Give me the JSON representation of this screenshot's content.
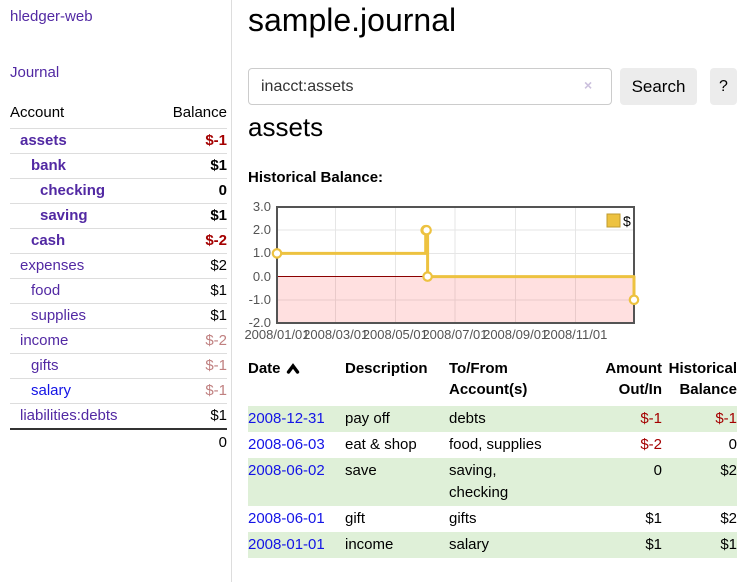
{
  "app": {
    "brand": "hledger-web",
    "nav_journal": "Journal"
  },
  "sidebar": {
    "header": {
      "account": "Account",
      "balance": "Balance"
    },
    "accounts": [
      {
        "name": "assets",
        "indent": 0,
        "bold": true,
        "link_style": "purple",
        "balance": "$-1",
        "balance_style": "strong-negative"
      },
      {
        "name": "bank",
        "indent": 1,
        "bold": true,
        "link_style": "purple",
        "balance": "$1",
        "balance_style": "default"
      },
      {
        "name": "checking",
        "indent": 2,
        "bold": true,
        "link_style": "purple",
        "balance": "0",
        "balance_style": "default"
      },
      {
        "name": "saving",
        "indent": 2,
        "bold": true,
        "link_style": "purple",
        "balance": "$1",
        "balance_style": "default"
      },
      {
        "name": "cash",
        "indent": 1,
        "bold": true,
        "link_style": "purple",
        "balance": "$-2",
        "balance_style": "strong-negative"
      },
      {
        "name": "expenses",
        "indent": 0,
        "bold": false,
        "link_style": "purple",
        "balance": "$2",
        "balance_style": "default"
      },
      {
        "name": "food",
        "indent": 1,
        "bold": false,
        "link_style": "purple",
        "balance": "$1",
        "balance_style": "default"
      },
      {
        "name": "supplies",
        "indent": 1,
        "bold": false,
        "link_style": "purple",
        "balance": "$1",
        "balance_style": "default"
      },
      {
        "name": "income",
        "indent": 0,
        "bold": false,
        "link_style": "purple",
        "balance": "$-2",
        "balance_style": "soft-negative"
      },
      {
        "name": "gifts",
        "indent": 1,
        "bold": false,
        "link_style": "purple",
        "balance": "$-1",
        "balance_style": "soft-negative"
      },
      {
        "name": "salary",
        "indent": 1,
        "bold": false,
        "link_style": "blue",
        "balance": "$-1",
        "balance_style": "soft-negative"
      },
      {
        "name": "liabilities:debts",
        "indent": 0,
        "bold": false,
        "link_style": "purple",
        "balance": "$1",
        "balance_style": "default"
      }
    ],
    "total": "0"
  },
  "header": {
    "title": "sample.journal"
  },
  "search": {
    "value": "inacct:assets",
    "clear_icon": "×",
    "button_label": "Search",
    "help_label": "?"
  },
  "account_page": {
    "title": "assets",
    "chart_label": "Historical Balance:"
  },
  "chart_data": {
    "type": "line",
    "style": "step",
    "title": "Historical Balance",
    "series": [
      {
        "name": "$",
        "color": "#edc240",
        "points": [
          [
            "2008-01-01",
            1
          ],
          [
            "2008-06-01",
            2
          ],
          [
            "2008-06-02",
            2
          ],
          [
            "2008-06-03",
            0
          ],
          [
            "2008-12-31",
            -1
          ]
        ]
      }
    ],
    "x_range": [
      "2008-01-01",
      "2008-12-31"
    ],
    "ylim": [
      -2,
      3
    ],
    "y_ticks": [
      {
        "v": 3,
        "label": "3.0"
      },
      {
        "v": 2,
        "label": "2.0"
      },
      {
        "v": 1,
        "label": "1.0"
      },
      {
        "v": 0,
        "label": "0.0"
      },
      {
        "v": -1,
        "label": "-1.0"
      },
      {
        "v": -2,
        "label": "-2.0"
      }
    ],
    "x_ticks": [
      {
        "date": "2008-01-01",
        "label": "2008/01/01"
      },
      {
        "date": "2008-03-01",
        "label": "2008/03/01"
      },
      {
        "date": "2008-05-01",
        "label": "2008/05/01"
      },
      {
        "date": "2008-07-01",
        "label": "2008/07/01"
      },
      {
        "date": "2008-09-01",
        "label": "2008/09/01"
      },
      {
        "date": "2008-11-01",
        "label": "2008/11/01"
      }
    ],
    "grid": true,
    "legend": {
      "label": "$",
      "position": "top-right"
    },
    "negative_region_color": "rgba(255,0,0,0.12)",
    "zero_line_color": "#8b0000"
  },
  "register": {
    "columns": [
      "Date",
      "Description",
      "To/From Account(s)",
      "Amount Out/In",
      "Historical Balance"
    ],
    "sort": "date-ascending",
    "rows": [
      {
        "date": "2008-12-31",
        "description": "pay off",
        "accounts": "debts",
        "amount": "$-1",
        "amount_negative": true,
        "balance": "$-1",
        "balance_negative": true,
        "highlight": true
      },
      {
        "date": "2008-06-03",
        "description": "eat & shop",
        "accounts": "food, supplies",
        "amount": "$-2",
        "amount_negative": true,
        "balance": "0",
        "balance_negative": false,
        "highlight": false
      },
      {
        "date": "2008-06-02",
        "description": "save",
        "accounts": "saving, checking",
        "amount": "0",
        "amount_negative": false,
        "balance": "$2",
        "balance_negative": false,
        "highlight": true
      },
      {
        "date": "2008-06-01",
        "description": "gift",
        "accounts": "gifts",
        "amount": "$1",
        "amount_negative": false,
        "balance": "$2",
        "balance_negative": false,
        "highlight": false
      },
      {
        "date": "2008-01-01",
        "description": "income",
        "accounts": "salary",
        "amount": "$1",
        "amount_negative": false,
        "balance": "$1",
        "balance_negative": false,
        "highlight": true
      }
    ]
  }
}
